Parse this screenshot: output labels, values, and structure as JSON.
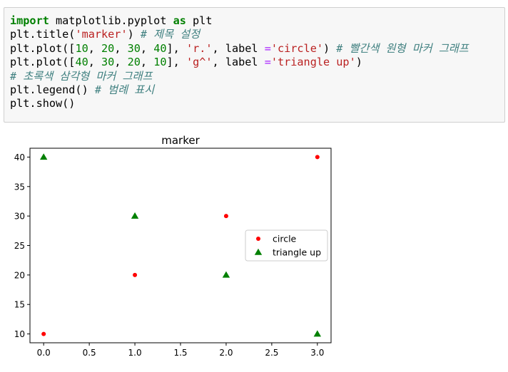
{
  "code": {
    "lines": [
      [
        {
          "t": "import",
          "c": "kw"
        },
        {
          "t": " matplotlib.pyplot ",
          "c": "plain"
        },
        {
          "t": "as",
          "c": "kw"
        },
        {
          "t": " plt",
          "c": "plain"
        }
      ],
      [
        {
          "t": "plt.title(",
          "c": "plain"
        },
        {
          "t": "'marker'",
          "c": "str"
        },
        {
          "t": ") ",
          "c": "plain"
        },
        {
          "t": "# 제목 설정",
          "c": "comment"
        }
      ],
      [
        {
          "t": "plt.plot([",
          "c": "plain"
        },
        {
          "t": "10",
          "c": "num"
        },
        {
          "t": ", ",
          "c": "plain"
        },
        {
          "t": "20",
          "c": "num"
        },
        {
          "t": ", ",
          "c": "plain"
        },
        {
          "t": "30",
          "c": "num"
        },
        {
          "t": ", ",
          "c": "plain"
        },
        {
          "t": "40",
          "c": "num"
        },
        {
          "t": "], ",
          "c": "plain"
        },
        {
          "t": "'r.'",
          "c": "str"
        },
        {
          "t": ", label ",
          "c": "plain"
        },
        {
          "t": "=",
          "c": "op"
        },
        {
          "t": "'circle'",
          "c": "str"
        },
        {
          "t": ") ",
          "c": "plain"
        },
        {
          "t": "# 빨간색 원형 마커 그래프",
          "c": "comment"
        }
      ],
      [
        {
          "t": "plt.plot([",
          "c": "plain"
        },
        {
          "t": "40",
          "c": "num"
        },
        {
          "t": ", ",
          "c": "plain"
        },
        {
          "t": "30",
          "c": "num"
        },
        {
          "t": ", ",
          "c": "plain"
        },
        {
          "t": "20",
          "c": "num"
        },
        {
          "t": ", ",
          "c": "plain"
        },
        {
          "t": "10",
          "c": "num"
        },
        {
          "t": "], ",
          "c": "plain"
        },
        {
          "t": "'g^'",
          "c": "str"
        },
        {
          "t": ", label ",
          "c": "plain"
        },
        {
          "t": "=",
          "c": "op"
        },
        {
          "t": "'triangle up'",
          "c": "str"
        },
        {
          "t": ")",
          "c": "plain"
        }
      ],
      [
        {
          "t": "# 초록색 삼각형 마커 그래프",
          "c": "comment"
        }
      ],
      [
        {
          "t": "plt.legend() ",
          "c": "plain"
        },
        {
          "t": "# 범례 표시",
          "c": "comment"
        }
      ],
      [
        {
          "t": "plt.show()",
          "c": "plain"
        }
      ]
    ]
  },
  "chart_data": {
    "type": "scatter",
    "title": "marker",
    "xlabel": "",
    "ylabel": "",
    "xlim": [
      -0.15,
      3.15
    ],
    "ylim": [
      8.5,
      41.5
    ],
    "xticks": [
      "0.0",
      "0.5",
      "1.0",
      "1.5",
      "2.0",
      "2.5",
      "3.0"
    ],
    "yticks": [
      "10",
      "15",
      "20",
      "25",
      "30",
      "35",
      "40"
    ],
    "grid": false,
    "legend_position": "center-right",
    "series": [
      {
        "name": "circle",
        "marker": "circle",
        "color": "#ff0000",
        "x": [
          0,
          1,
          2,
          3
        ],
        "y": [
          10,
          20,
          30,
          40
        ]
      },
      {
        "name": "triangle up",
        "marker": "triangle-up",
        "color": "#008000",
        "x": [
          0,
          1,
          2,
          3
        ],
        "y": [
          40,
          30,
          20,
          10
        ]
      }
    ]
  }
}
